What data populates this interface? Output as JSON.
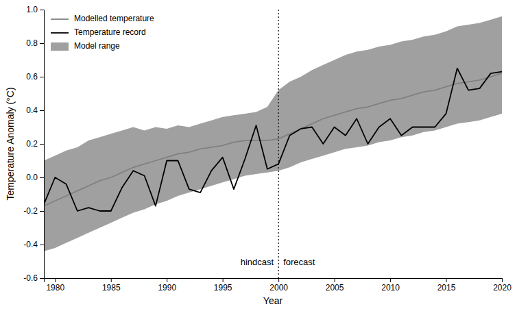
{
  "chart_data": {
    "type": "line",
    "xlabel": "Year",
    "ylabel": "Temperature Anomaly (°C)",
    "x": [
      1979,
      1980,
      1981,
      1982,
      1983,
      1984,
      1985,
      1986,
      1987,
      1988,
      1989,
      1990,
      1991,
      1992,
      1993,
      1994,
      1995,
      1996,
      1997,
      1998,
      1999,
      2000,
      2001,
      2002,
      2003,
      2004,
      2005,
      2006,
      2007,
      2008,
      2009,
      2010,
      2011,
      2012,
      2013,
      2014,
      2015,
      2016,
      2017,
      2018,
      2019,
      2020
    ],
    "series": [
      {
        "name": "Modelled temperature",
        "type": "line",
        "color": "#808080",
        "values": [
          -0.17,
          -0.14,
          -0.11,
          -0.08,
          -0.05,
          -0.02,
          0.0,
          0.03,
          0.06,
          0.08,
          0.1,
          0.12,
          0.14,
          0.15,
          0.17,
          0.18,
          0.19,
          0.21,
          0.22,
          0.22,
          0.22,
          0.23,
          0.26,
          0.29,
          0.32,
          0.35,
          0.37,
          0.39,
          0.41,
          0.42,
          0.44,
          0.46,
          0.47,
          0.49,
          0.51,
          0.52,
          0.54,
          0.56,
          0.57,
          0.58,
          0.6,
          0.62
        ]
      },
      {
        "name": "Temperature record",
        "type": "line",
        "color": "#000000",
        "values": [
          -0.16,
          0.0,
          -0.04,
          -0.2,
          -0.18,
          -0.2,
          -0.2,
          -0.06,
          0.04,
          0.01,
          -0.17,
          0.1,
          0.1,
          -0.07,
          -0.09,
          0.04,
          0.12,
          -0.07,
          0.11,
          0.31,
          0.05,
          0.08,
          0.25,
          0.29,
          0.3,
          0.2,
          0.3,
          0.25,
          0.35,
          0.2,
          0.3,
          0.35,
          0.25,
          0.3,
          0.3,
          0.3,
          0.38,
          0.65,
          0.52,
          0.53,
          0.62,
          0.63
        ]
      },
      {
        "name": "Model range",
        "type": "area",
        "color": "#a0a0a0",
        "upper": [
          0.1,
          0.13,
          0.16,
          0.18,
          0.22,
          0.24,
          0.26,
          0.28,
          0.3,
          0.28,
          0.3,
          0.29,
          0.31,
          0.3,
          0.32,
          0.34,
          0.36,
          0.37,
          0.38,
          0.39,
          0.42,
          0.52,
          0.57,
          0.6,
          0.64,
          0.67,
          0.7,
          0.73,
          0.75,
          0.76,
          0.78,
          0.79,
          0.81,
          0.82,
          0.84,
          0.85,
          0.87,
          0.9,
          0.91,
          0.92,
          0.94,
          0.96
        ],
        "lower": [
          -0.44,
          -0.42,
          -0.39,
          -0.36,
          -0.33,
          -0.3,
          -0.27,
          -0.24,
          -0.21,
          -0.19,
          -0.16,
          -0.14,
          -0.11,
          -0.09,
          -0.07,
          -0.05,
          -0.03,
          -0.01,
          0.01,
          0.02,
          0.03,
          0.04,
          0.06,
          0.09,
          0.11,
          0.13,
          0.15,
          0.17,
          0.18,
          0.19,
          0.21,
          0.22,
          0.24,
          0.25,
          0.27,
          0.28,
          0.3,
          0.32,
          0.33,
          0.34,
          0.36,
          0.38
        ]
      }
    ],
    "reference_lines": [
      {
        "x": 2000,
        "line_style": "dotted",
        "color": "#000000"
      }
    ],
    "annotations": [
      {
        "text": "hindcast"
      },
      {
        "text": "forecast"
      }
    ],
    "xlim": [
      1979,
      2020
    ],
    "ylim": [
      -0.6,
      1.0
    ],
    "xticks": [
      1980,
      1985,
      1990,
      1995,
      2000,
      2005,
      2010,
      2015,
      2020
    ],
    "yticks": [
      -0.6,
      -0.4,
      -0.2,
      {
        "value": 0.0,
        "label": "0.0"
      },
      0.2,
      0.4,
      0.6,
      0.8,
      {
        "value": 1.0,
        "label": "1.0"
      }
    ],
    "legend": "upper-left",
    "grid": false
  }
}
